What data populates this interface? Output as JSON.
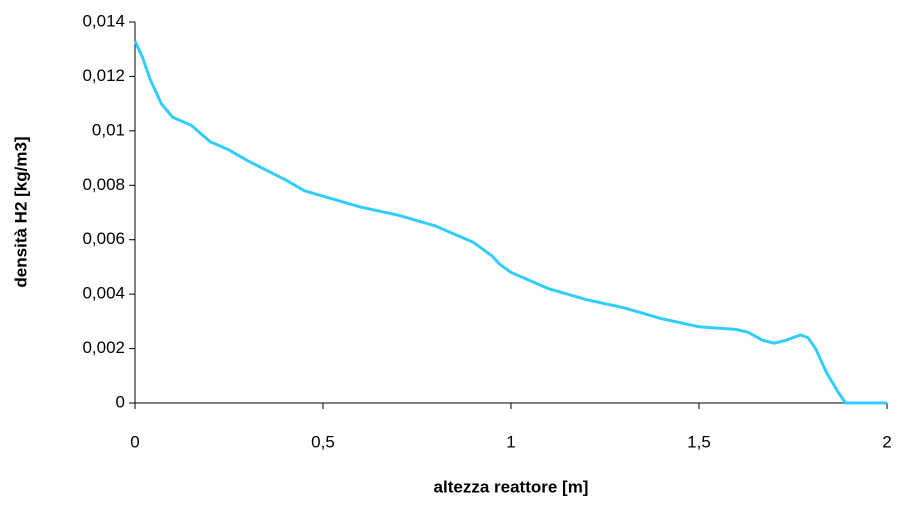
{
  "chart_data": {
    "type": "line",
    "x_label": "altezza reattore [m]",
    "y_label": "densità H2 [kg/m3]",
    "x": [
      0,
      0.02,
      0.04,
      0.07,
      0.1,
      0.15,
      0.2,
      0.25,
      0.3,
      0.4,
      0.45,
      0.5,
      0.6,
      0.7,
      0.8,
      0.85,
      0.9,
      0.95,
      0.97,
      1.0,
      1.1,
      1.2,
      1.3,
      1.4,
      1.5,
      1.6,
      1.63,
      1.67,
      1.7,
      1.73,
      1.75,
      1.77,
      1.79,
      1.81,
      1.84,
      1.87,
      1.89,
      1.98,
      2
    ],
    "series": [
      {
        "color": "#33ccff",
        "values": [
          0.0133,
          0.0127,
          0.0119,
          0.011,
          0.0105,
          0.0102,
          0.0096,
          0.0093,
          0.0089,
          0.0082,
          0.0078,
          0.0076,
          0.0072,
          0.0069,
          0.0065,
          0.0062,
          0.0059,
          0.0054,
          0.0051,
          0.0048,
          0.0042,
          0.0038,
          0.0035,
          0.0031,
          0.0028,
          0.0027,
          0.0026,
          0.0023,
          0.0022,
          0.0023,
          0.0024,
          0.0025,
          0.0024,
          0.002,
          0.0011,
          0.0004,
          0,
          0,
          0
        ]
      }
    ],
    "xlim": [
      0,
      2
    ],
    "xticks": [
      0,
      {
        "value": 0.5,
        "label": "0,5"
      },
      1,
      {
        "value": 1.5,
        "label": "1,5"
      },
      2
    ],
    "ylim": [
      0,
      0.014
    ],
    "yticks": [
      0,
      {
        "value": 0.002,
        "label": "0,002"
      },
      {
        "value": 0.004,
        "label": "0,004"
      },
      {
        "value": 0.006,
        "label": "0,006"
      },
      {
        "value": 0.008,
        "label": "0,008"
      },
      {
        "value": 0.01,
        "label": "0,01"
      },
      {
        "value": 0.012,
        "label": "0,012"
      },
      {
        "value": 0.014,
        "label": "0,014"
      }
    ]
  }
}
